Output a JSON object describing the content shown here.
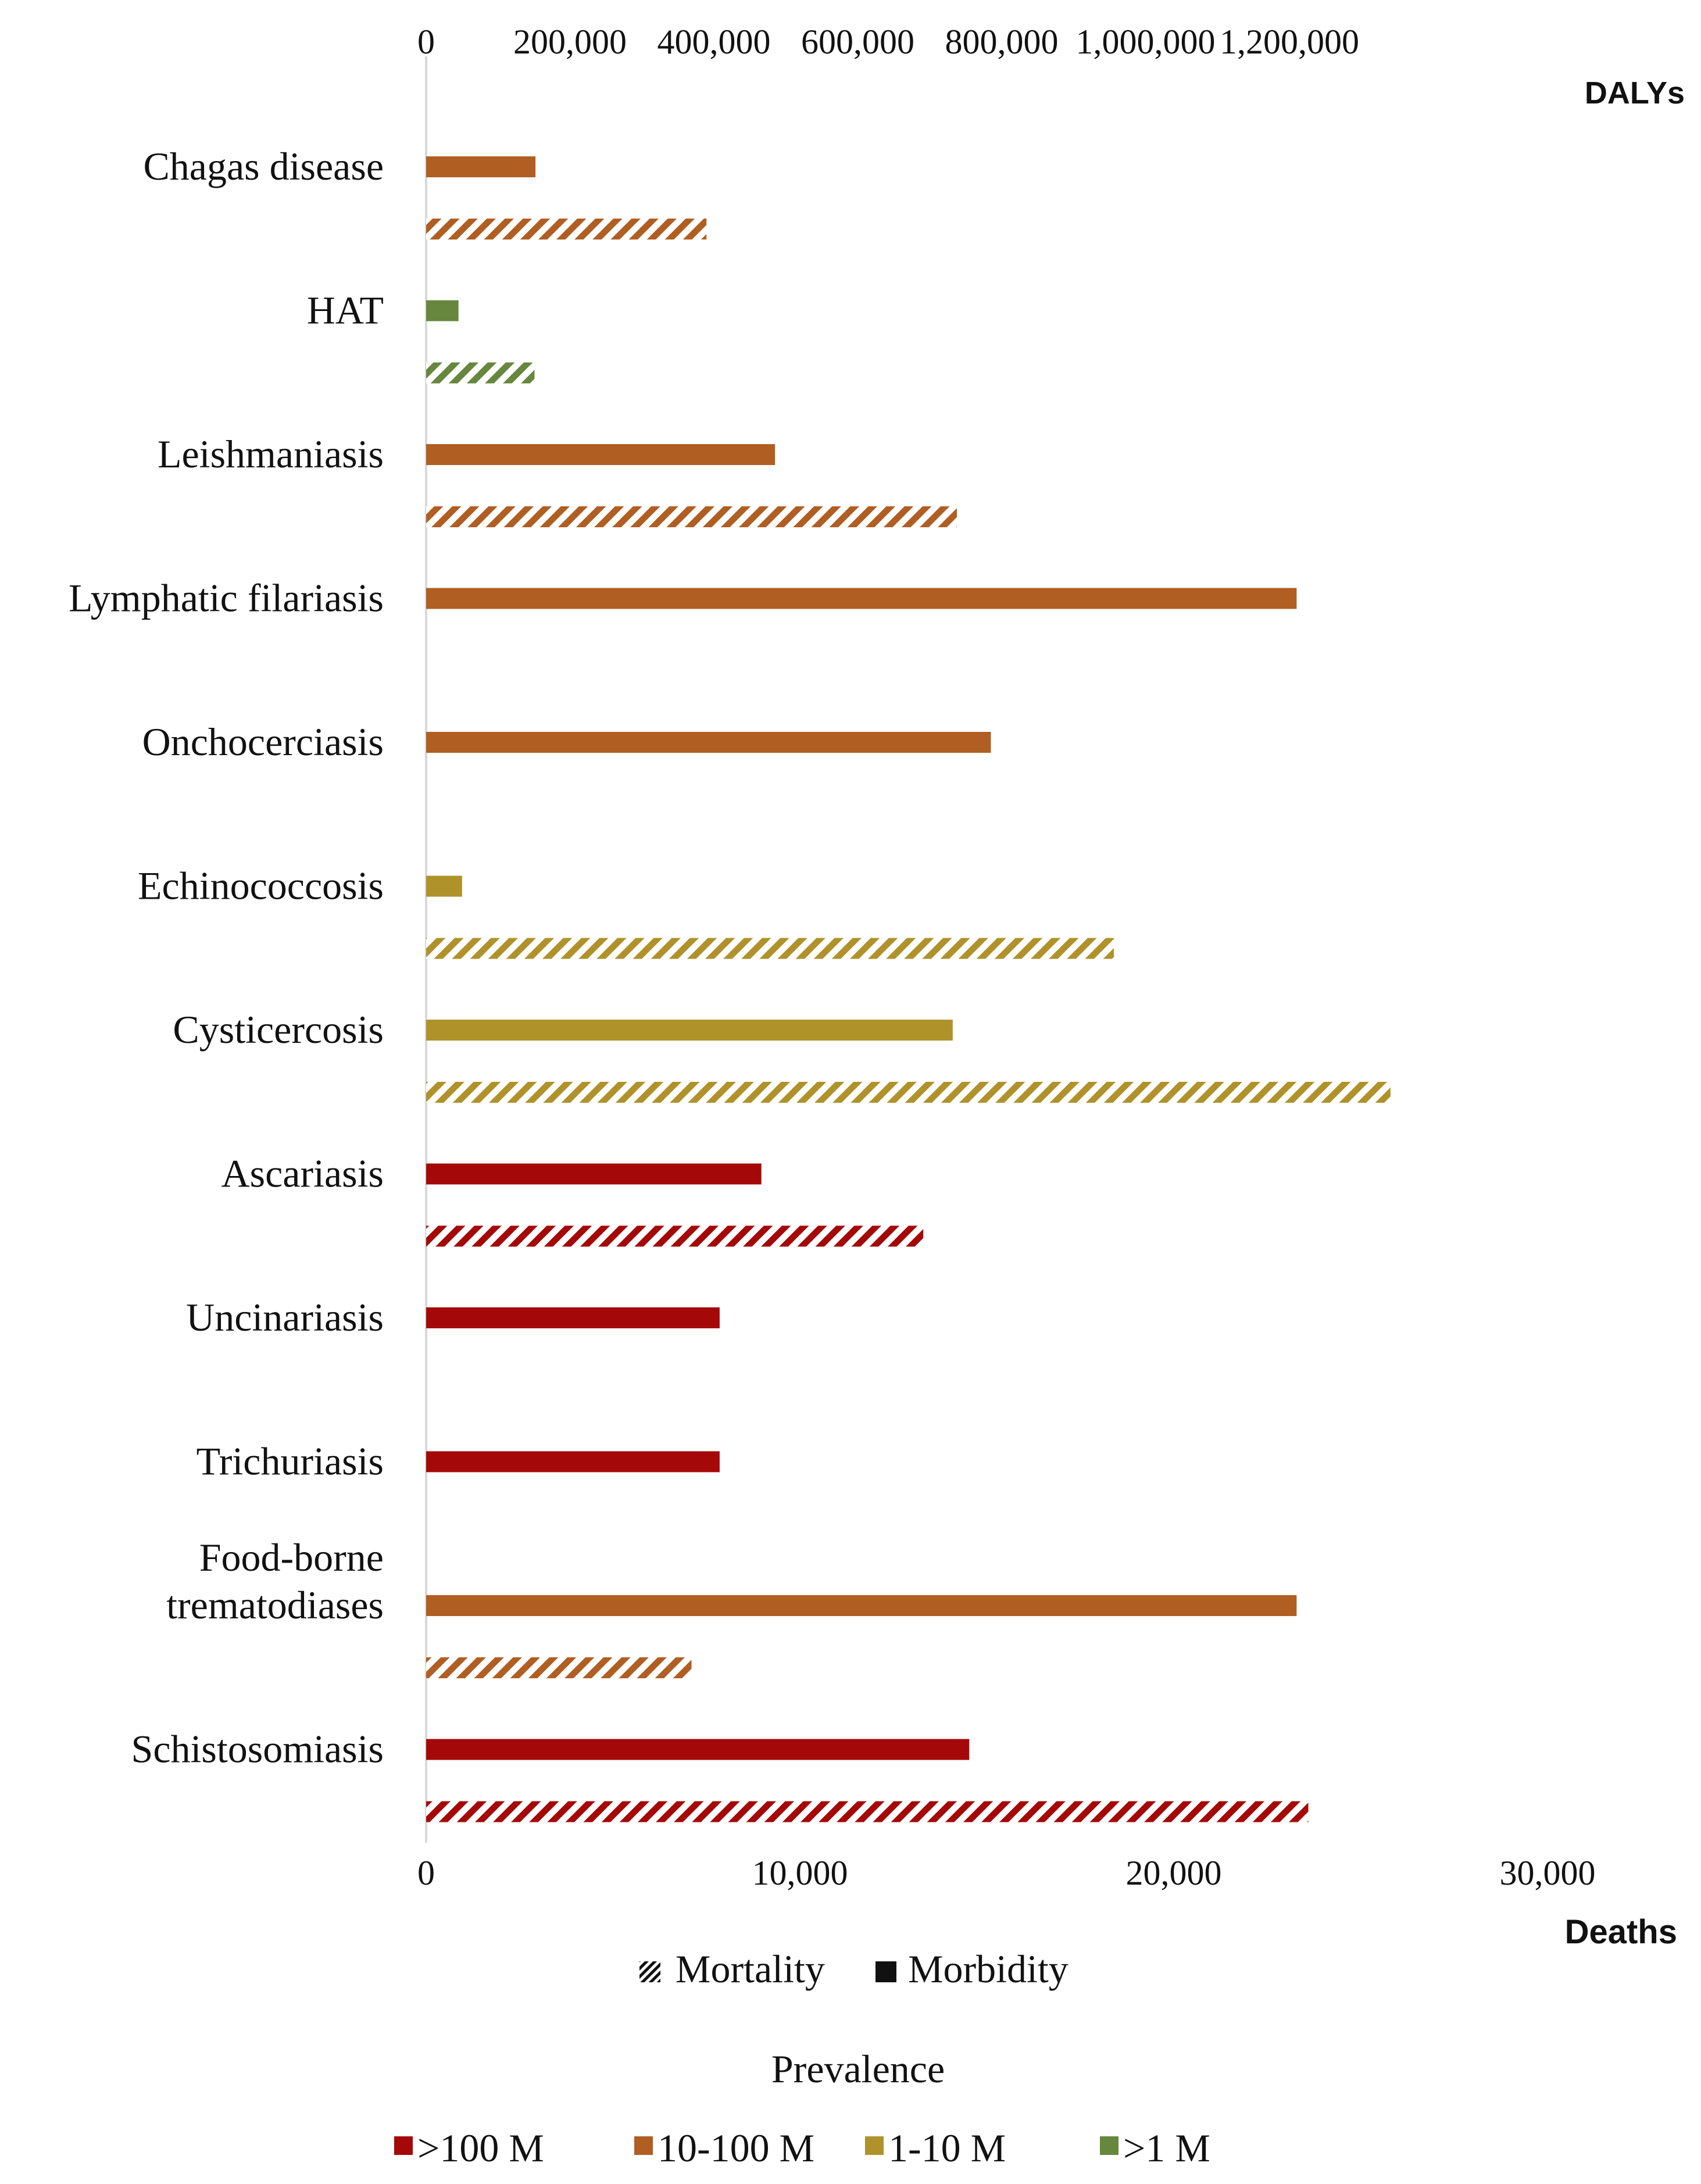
{
  "chart_data": {
    "type": "bar",
    "orientation": "horizontal",
    "top_axis": {
      "title": "DALYs",
      "ticks": [
        0,
        200000,
        400000,
        600000,
        800000,
        1000000,
        1200000
      ],
      "tick_labels": [
        "0",
        "200,000",
        "400,000",
        "600,000",
        "800,000",
        "1,000,000",
        "1,200,000"
      ],
      "range": [
        0,
        1200000
      ]
    },
    "bottom_axis": {
      "title": "Deaths",
      "ticks": [
        0,
        10000,
        20000,
        30000
      ],
      "tick_labels": [
        "0",
        "10,000",
        "20,000",
        "30,000"
      ],
      "range": [
        0,
        31000
      ]
    },
    "categories": [
      {
        "label_lines": [
          "Chagas disease"
        ],
        "prevalence": "10-100 M",
        "morbidity_dalys": 152000,
        "mortality_deaths": 7500
      },
      {
        "label_lines": [
          "HAT"
        ],
        "prevalence": ">1 M",
        "morbidity_dalys": 45000,
        "mortality_deaths": 2900
      },
      {
        "label_lines": [
          "Leishmaniasis"
        ],
        "prevalence": "10-100 M",
        "morbidity_dalys": 485000,
        "mortality_deaths": 14200
      },
      {
        "label_lines": [
          "Lymphatic filariasis"
        ],
        "prevalence": "10-100 M",
        "morbidity_dalys": 1210000,
        "mortality_deaths": null
      },
      {
        "label_lines": [
          "Onchocerciasis"
        ],
        "prevalence": "10-100 M",
        "morbidity_dalys": 785000,
        "mortality_deaths": null
      },
      {
        "label_lines": [
          "Echinococcosis"
        ],
        "prevalence": "1-10 M",
        "morbidity_dalys": 50000,
        "mortality_deaths": 18400
      },
      {
        "label_lines": [
          "Cysticercosis"
        ],
        "prevalence": "1-10 M",
        "morbidity_dalys": 732000,
        "mortality_deaths": 25800
      },
      {
        "label_lines": [
          "Ascariasis"
        ],
        "prevalence": ">100 M",
        "morbidity_dalys": 466000,
        "mortality_deaths": 13300
      },
      {
        "label_lines": [
          "Uncinariasis"
        ],
        "prevalence": ">100 M",
        "morbidity_dalys": 408000,
        "mortality_deaths": null
      },
      {
        "label_lines": [
          "Trichuriasis"
        ],
        "prevalence": ">100 M",
        "morbidity_dalys": 408000,
        "mortality_deaths": null
      },
      {
        "label_lines": [
          "Food-borne",
          "trematodiases"
        ],
        "prevalence": "10-100 M",
        "morbidity_dalys": 1210000,
        "mortality_deaths": 7100
      },
      {
        "label_lines": [
          "Schistosomiasis"
        ],
        "prevalence": ">100 M",
        "morbidity_dalys": 755000,
        "mortality_deaths": 23600
      }
    ],
    "legend": {
      "type_items": [
        {
          "label": "Mortality",
          "style": "hatched"
        },
        {
          "label": "Morbidity",
          "style": "solid"
        }
      ],
      "prevalence_title": "Prevalence",
      "prevalence_items": [
        {
          "label": ">100 M",
          "color": "#A50808"
        },
        {
          "label": "10-100 M",
          "color": "#B05E22"
        },
        {
          "label": "1-10 M",
          "color": "#B0922B"
        },
        {
          "label": ">1 M",
          "color": "#66873D"
        }
      ]
    }
  }
}
